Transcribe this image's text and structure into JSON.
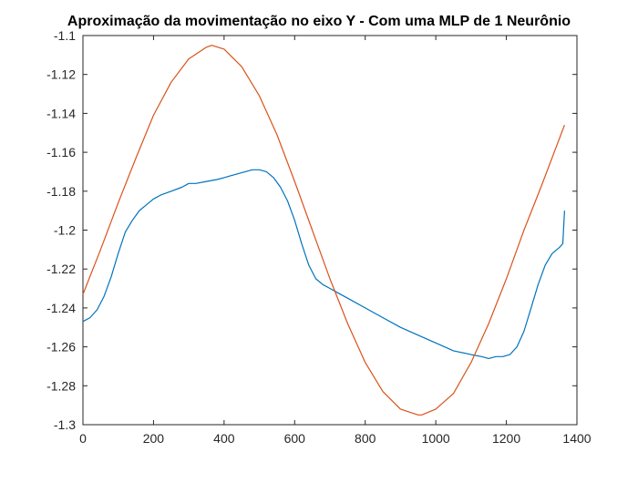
{
  "chart_data": {
    "type": "line",
    "title": "Aproximação da movimentação no eixo Y - Com uma MLP de 1 Neurônio",
    "xlabel": "",
    "ylabel": "",
    "xlim": [
      0,
      1400
    ],
    "ylim": [
      -1.3,
      -1.1
    ],
    "xticks": [
      "0",
      "200",
      "400",
      "600",
      "800",
      "1000",
      "1200",
      "1400"
    ],
    "yticks": [
      "-1.1",
      "-1.12",
      "-1.14",
      "-1.16",
      "-1.18",
      "-1.2",
      "-1.22",
      "-1.24",
      "-1.26",
      "-1.28",
      "-1.3"
    ],
    "grid": false,
    "legend": "none",
    "series": [
      {
        "color": "#0072BD",
        "x": [
          0,
          20,
          40,
          60,
          80,
          100,
          120,
          140,
          160,
          180,
          200,
          220,
          250,
          280,
          300,
          320,
          350,
          380,
          400,
          420,
          440,
          460,
          480,
          500,
          520,
          540,
          560,
          580,
          600,
          620,
          640,
          660,
          680,
          700,
          720,
          750,
          800,
          850,
          900,
          950,
          1000,
          1050,
          1100,
          1130,
          1150,
          1170,
          1190,
          1210,
          1230,
          1250,
          1270,
          1290,
          1310,
          1330,
          1350,
          1360,
          1365
        ],
        "y": [
          -1.247,
          -1.245,
          -1.241,
          -1.234,
          -1.224,
          -1.212,
          -1.201,
          -1.195,
          -1.19,
          -1.187,
          -1.184,
          -1.182,
          -1.18,
          -1.178,
          -1.176,
          -1.176,
          -1.175,
          -1.174,
          -1.173,
          -1.172,
          -1.171,
          -1.17,
          -1.169,
          -1.169,
          -1.17,
          -1.173,
          -1.178,
          -1.185,
          -1.195,
          -1.207,
          -1.218,
          -1.225,
          -1.228,
          -1.23,
          -1.232,
          -1.235,
          -1.24,
          -1.245,
          -1.25,
          -1.254,
          -1.258,
          -1.262,
          -1.264,
          -1.265,
          -1.266,
          -1.265,
          -1.265,
          -1.264,
          -1.26,
          -1.252,
          -1.24,
          -1.228,
          -1.218,
          -1.212,
          -1.209,
          -1.207,
          -1.19
        ]
      },
      {
        "color": "#D95319",
        "x": [
          0,
          50,
          100,
          150,
          200,
          250,
          300,
          350,
          365,
          400,
          450,
          500,
          550,
          600,
          650,
          700,
          750,
          800,
          850,
          900,
          950,
          960,
          1000,
          1050,
          1100,
          1150,
          1200,
          1250,
          1300,
          1365
        ],
        "y": [
          -1.233,
          -1.21,
          -1.186,
          -1.163,
          -1.141,
          -1.124,
          -1.112,
          -1.106,
          -1.105,
          -1.107,
          -1.116,
          -1.131,
          -1.151,
          -1.175,
          -1.2,
          -1.225,
          -1.248,
          -1.268,
          -1.283,
          -1.292,
          -1.295,
          -1.295,
          -1.292,
          -1.284,
          -1.268,
          -1.248,
          -1.225,
          -1.2,
          -1.177,
          -1.146
        ]
      }
    ]
  }
}
